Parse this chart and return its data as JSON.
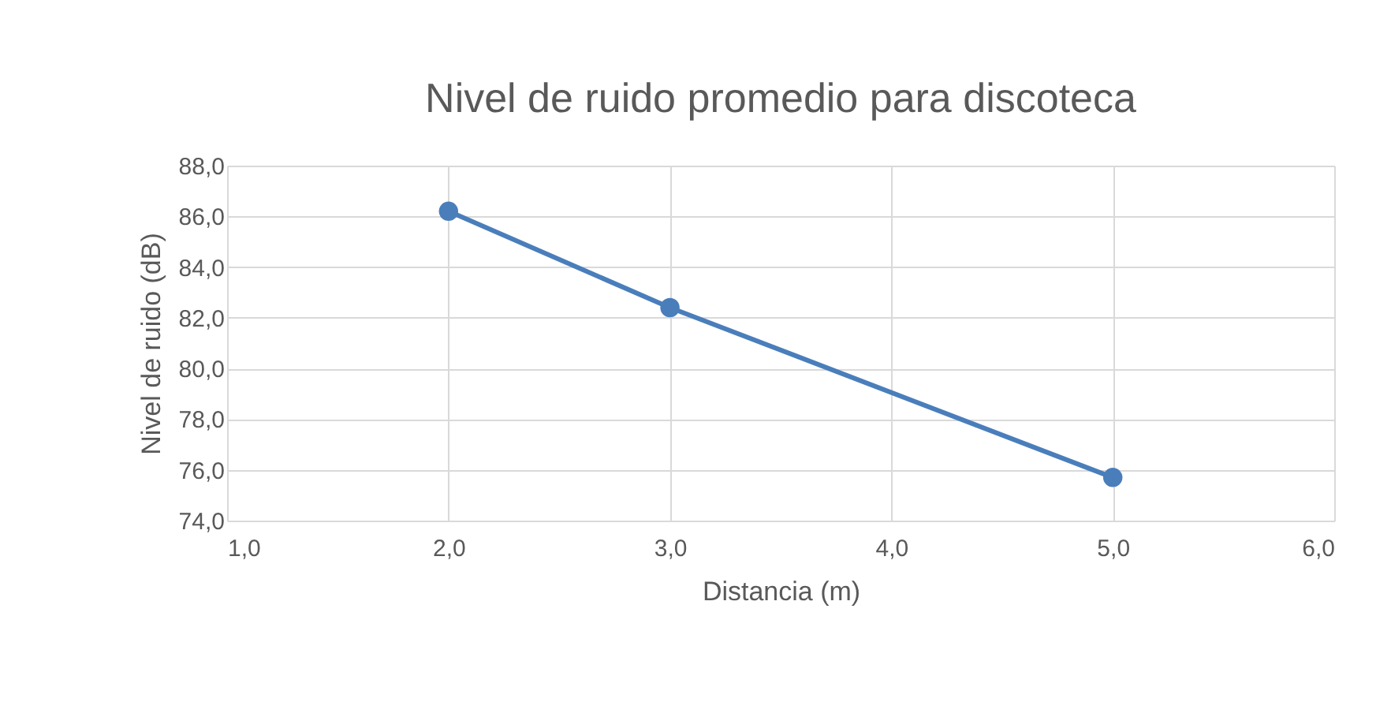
{
  "chart_data": {
    "type": "line",
    "title": "Nivel de ruido promedio para discoteca",
    "xlabel": "Distancia (m)",
    "ylabel": "Nivel de ruido (dB)",
    "x": [
      2,
      3,
      5
    ],
    "series": [
      {
        "color": "#4a7ebb",
        "values": [
          86.2,
          82.4,
          75.7
        ]
      }
    ],
    "marker": "circle",
    "line_style": "solid",
    "grid": true,
    "xlim": [
      1,
      6
    ],
    "xticks": [
      {
        "value": 1,
        "label": "1,0"
      },
      {
        "value": 2,
        "label": "2,0"
      },
      {
        "value": 3,
        "label": "3,0"
      },
      {
        "value": 4,
        "label": "4,0"
      },
      {
        "value": 5,
        "label": "5,0"
      },
      {
        "value": 6,
        "label": "6,0"
      }
    ],
    "ylim": [
      74,
      88
    ],
    "yticks": [
      {
        "value": 74,
        "label": "74,0"
      },
      {
        "value": 76,
        "label": "76,0"
      },
      {
        "value": 78,
        "label": "78,0"
      },
      {
        "value": 80,
        "label": "80,0"
      },
      {
        "value": 82,
        "label": "82,0"
      },
      {
        "value": 84,
        "label": "84,0"
      },
      {
        "value": 86,
        "label": "86,0"
      },
      {
        "value": 88,
        "label": "88,0"
      }
    ]
  }
}
